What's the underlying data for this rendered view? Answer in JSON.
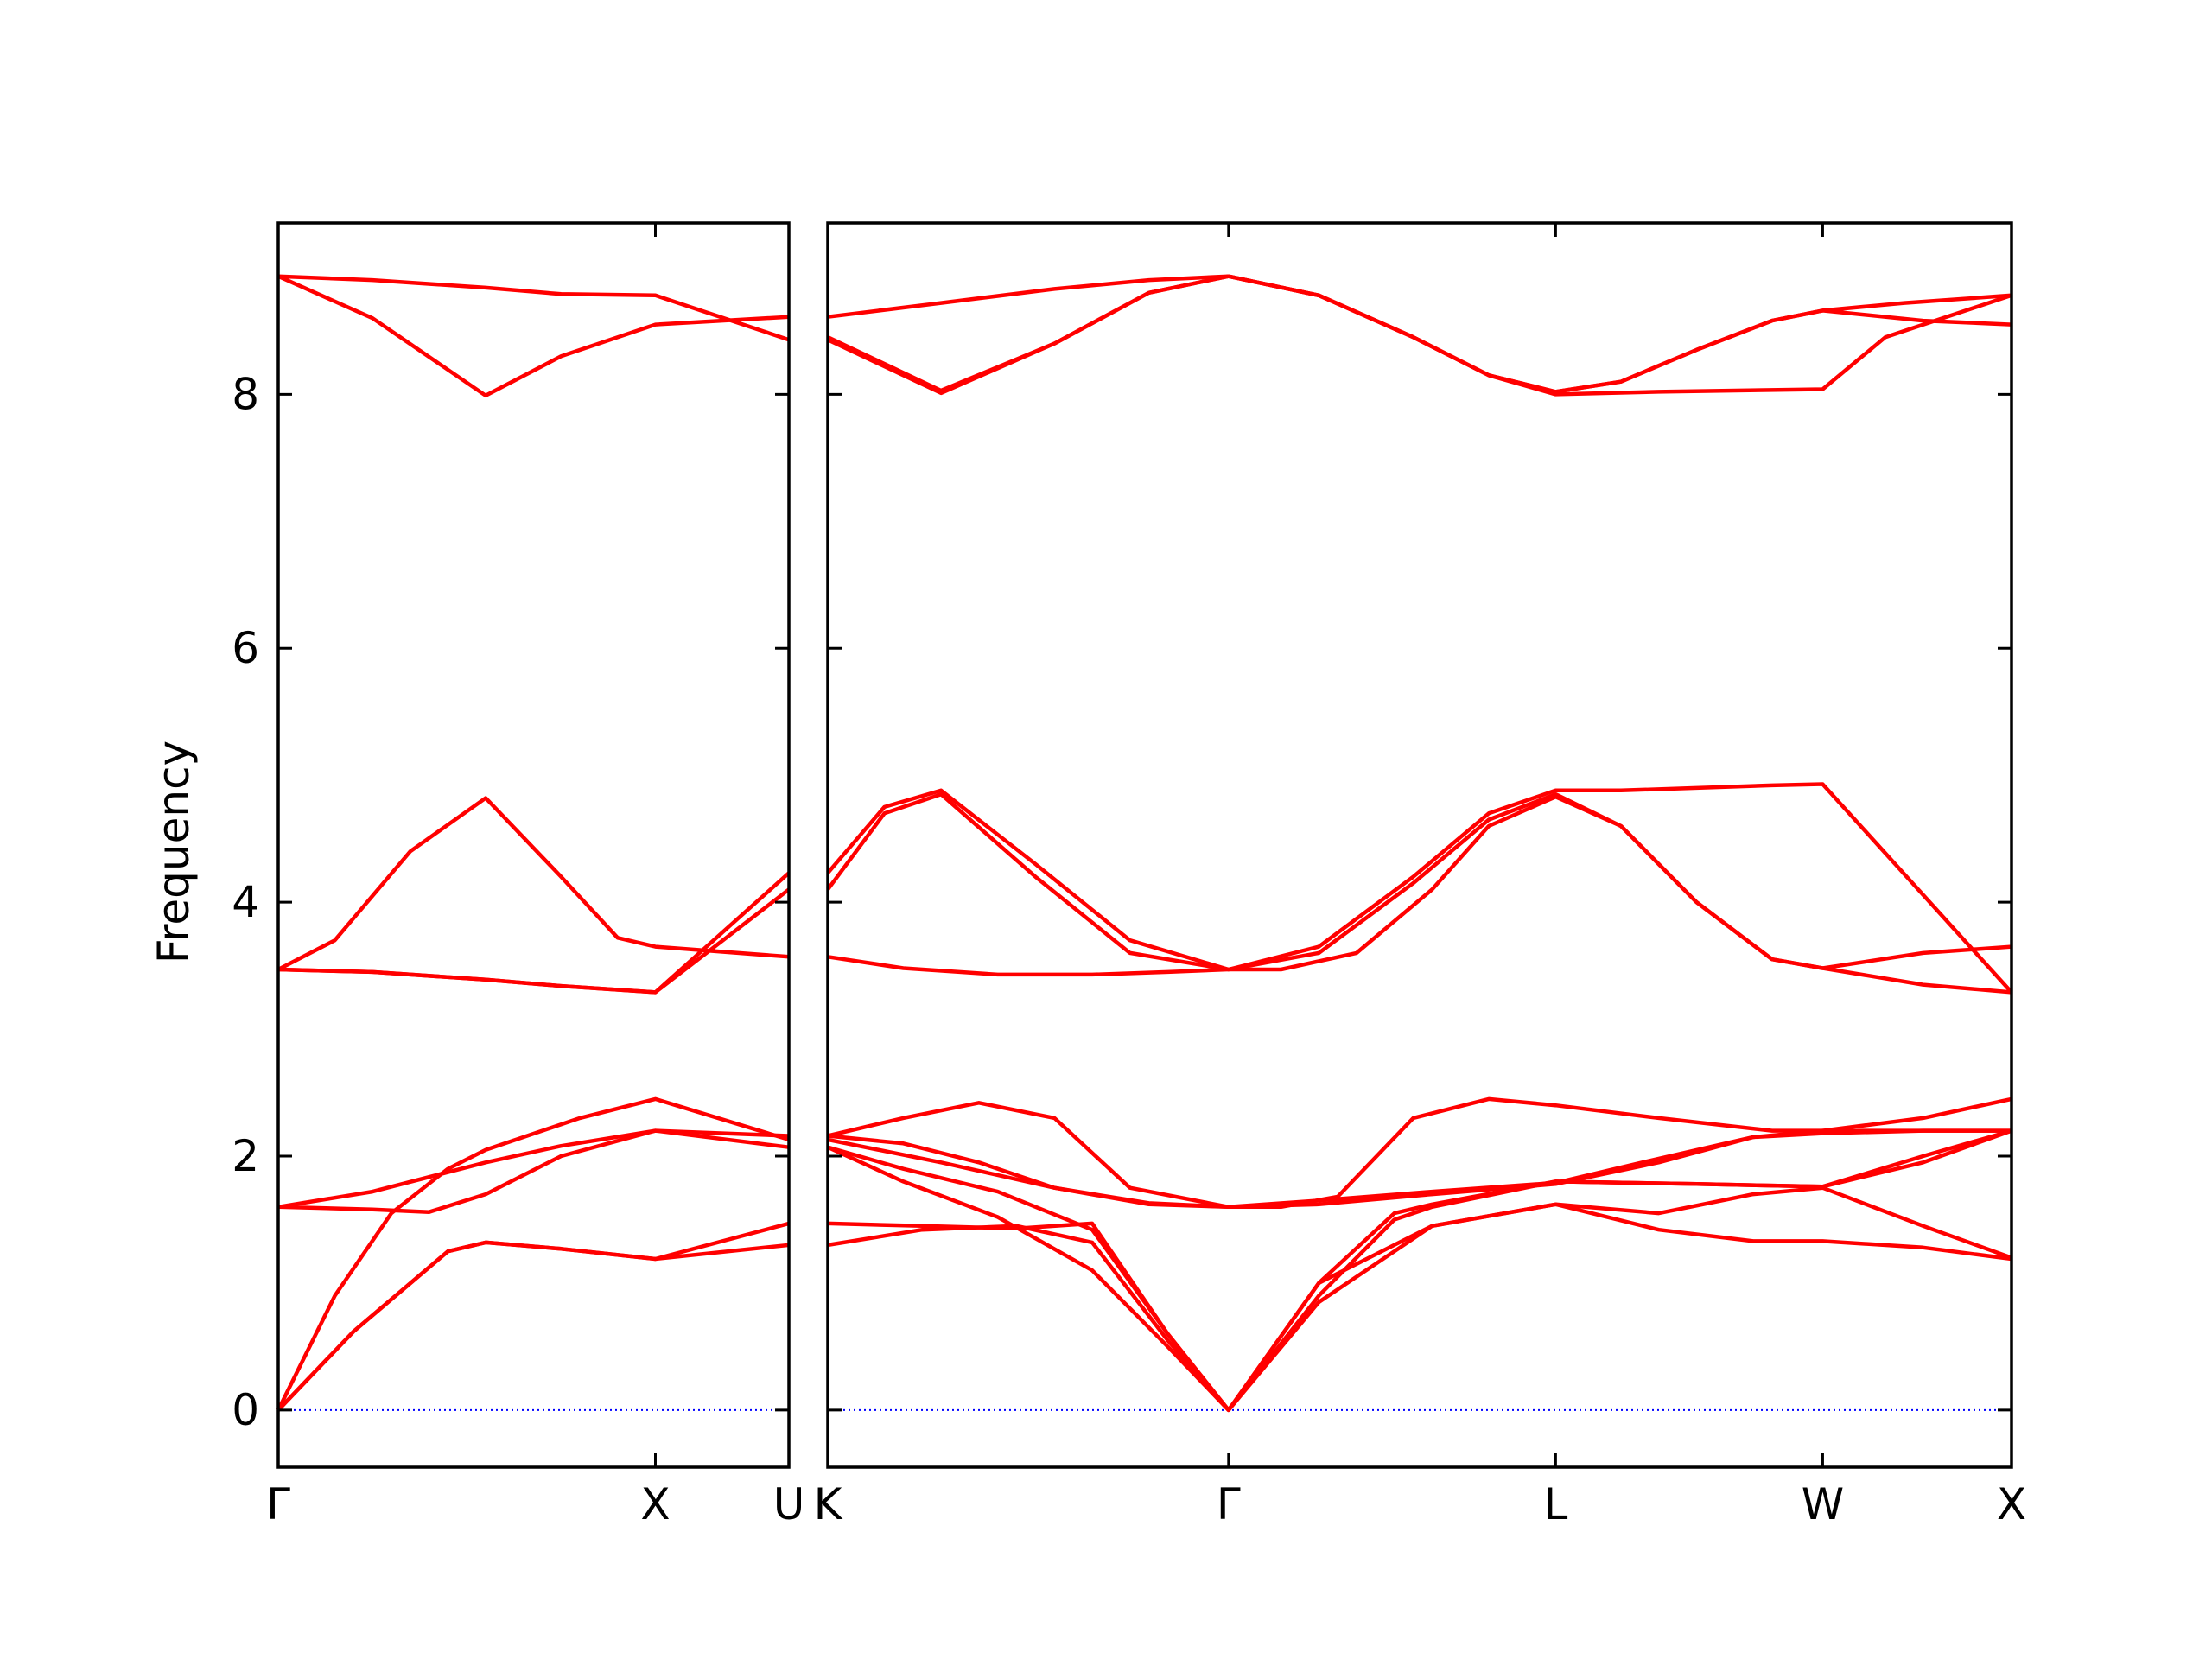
{
  "chart_data": {
    "type": "line",
    "ylabel": "Frequency",
    "ylim": [
      -0.45,
      9.35
    ],
    "yticks": [
      "0",
      "2",
      "4",
      "6",
      "8"
    ],
    "line_color": "#ff0000",
    "zero_line_color": "#0000ff",
    "panels": [
      {
        "xticks": [
          {
            "label": "Γ",
            "x": 0
          },
          {
            "label": "X",
            "x": 1
          },
          {
            "label": "U",
            "x": 1.354
          }
        ],
        "xlim": [
          0,
          1.354
        ],
        "series": [
          {
            "x": [
              0,
              0.25,
              0.55,
              0.75,
              1,
              1.354
            ],
            "y": [
              8.93,
              8.9,
              8.84,
              8.79,
              8.78,
              8.43
            ]
          },
          {
            "x": [
              0,
              0.25,
              0.55,
              0.75,
              1,
              1.354
            ],
            "y": [
              8.93,
              8.6,
              7.99,
              8.3,
              8.55,
              8.61
            ]
          },
          {
            "x": [
              0,
              0.15,
              0.35,
              0.55,
              0.75,
              0.9,
              1,
              1.354
            ],
            "y": [
              3.47,
              3.7,
              4.4,
              4.82,
              4.2,
              3.72,
              3.65,
              3.57
            ]
          },
          {
            "x": [
              0,
              0.25,
              0.55,
              0.75,
              1,
              1.354
            ],
            "y": [
              3.47,
              3.45,
              3.39,
              3.34,
              3.29,
              4.23
            ]
          },
          {
            "x": [
              0,
              0.25,
              0.55,
              0.75,
              1,
              1.354
            ],
            "y": [
              3.47,
              3.45,
              3.39,
              3.34,
              3.29,
              4.1
            ]
          },
          {
            "x": [
              0,
              0.15,
              0.3,
              0.45,
              0.55,
              0.8,
              1,
              1.354
            ],
            "y": [
              0,
              0.9,
              1.55,
              1.9,
              2.05,
              2.3,
              2.45,
              2.13
            ]
          },
          {
            "x": [
              0,
              0.25,
              0.55,
              0.75,
              1,
              1.354
            ],
            "y": [
              1.6,
              1.72,
              1.95,
              2.08,
              2.2,
              2.16
            ]
          },
          {
            "x": [
              0,
              0.25,
              0.4,
              0.55,
              0.75,
              1,
              1.354
            ],
            "y": [
              1.6,
              1.58,
              1.56,
              1.7,
              2.0,
              2.2,
              2.07
            ]
          },
          {
            "x": [
              0,
              0.2,
              0.45,
              0.55,
              0.75,
              1,
              1.354
            ],
            "y": [
              0,
              0.62,
              1.25,
              1.32,
              1.27,
              1.19,
              1.47
            ]
          },
          {
            "x": [
              0,
              0.2,
              0.45,
              0.55,
              0.75,
              1,
              1.354
            ],
            "y": [
              0,
              0.62,
              1.25,
              1.32,
              1.27,
              1.19,
              1.3
            ]
          }
        ]
      },
      {
        "xticks": [
          {
            "label": "K",
            "x": 0
          },
          {
            "label": "Γ",
            "x": 1.061
          },
          {
            "label": "L",
            "x": 1.927
          },
          {
            "label": "W",
            "x": 2.634
          },
          {
            "label": "X",
            "x": 3.134
          }
        ],
        "xlim": [
          0,
          3.134
        ],
        "series": [
          {
            "x": [
              0,
              0.3,
              0.6,
              0.85,
              1.061,
              1.3,
              1.55,
              1.75,
              1.927,
              2.1,
              2.3,
              2.5,
              2.634,
              2.85,
              3.134
            ],
            "y": [
              8.61,
              8.72,
              8.83,
              8.9,
              8.93,
              8.78,
              8.45,
              8.15,
              8.02,
              8.1,
              8.35,
              8.58,
              8.66,
              8.72,
              8.78
            ]
          },
          {
            "x": [
              0,
              0.3,
              0.6,
              0.85,
              1.061,
              1.3,
              1.55,
              1.75,
              1.927,
              2.2,
              2.634,
              2.8,
              3.134
            ],
            "y": [
              8.43,
              8.01,
              8.4,
              8.8,
              8.93,
              8.78,
              8.45,
              8.15,
              8.0,
              8.02,
              8.04,
              8.45,
              8.78
            ]
          },
          {
            "x": [
              0,
              0.3,
              0.6,
              0.85,
              1.061,
              1.3,
              1.55,
              1.75,
              1.927,
              2.1,
              2.3,
              2.5,
              2.634,
              2.9,
              3.134
            ],
            "y": [
              8.45,
              8.03,
              8.4,
              8.8,
              8.93,
              8.78,
              8.45,
              8.15,
              8.02,
              8.1,
              8.35,
              8.58,
              8.66,
              8.58,
              8.55
            ]
          },
          {
            "x": [
              0,
              0.15,
              0.3,
              0.55,
              0.8,
              1.061,
              1.3,
              1.55,
              1.75,
              1.927,
              2.1,
              2.3,
              2.5,
              2.634,
              3.134
            ],
            "y": [
              4.23,
              4.75,
              4.88,
              4.3,
              3.7,
              3.47,
              3.65,
              4.2,
              4.7,
              4.88,
              4.88,
              4.9,
              4.92,
              4.93,
              3.29
            ]
          },
          {
            "x": [
              0,
              0.15,
              0.3,
              0.55,
              0.8,
              1.061,
              1.3,
              1.55,
              1.75,
              1.927,
              2.1,
              2.3,
              2.5,
              2.634,
              2.9,
              3.134
            ],
            "y": [
              4.1,
              4.7,
              4.85,
              4.2,
              3.6,
              3.47,
              3.6,
              4.15,
              4.65,
              4.85,
              4.6,
              4.0,
              3.55,
              3.48,
              3.6,
              3.65
            ]
          },
          {
            "x": [
              0,
              0.2,
              0.45,
              0.7,
              0.9,
              1.061,
              1.2,
              1.4,
              1.6,
              1.75,
              1.927,
              2.1,
              2.3,
              2.5,
              2.634,
              2.9,
              3.134
            ],
            "y": [
              3.57,
              3.48,
              3.43,
              3.43,
              3.45,
              3.47,
              3.47,
              3.6,
              4.1,
              4.6,
              4.83,
              4.6,
              4.0,
              3.55,
              3.48,
              3.35,
              3.29
            ]
          },
          {
            "x": [
              0,
              0.2,
              0.4,
              0.6,
              0.8,
              1.061,
              1.2,
              1.35,
              1.55,
              1.75,
              1.927,
              2.2,
              2.5,
              2.634,
              2.9,
              3.134
            ],
            "y": [
              2.16,
              2.3,
              2.42,
              2.3,
              1.75,
              1.6,
              1.6,
              1.68,
              2.3,
              2.45,
              2.4,
              2.3,
              2.2,
              2.2,
              2.3,
              2.45
            ]
          },
          {
            "x": [
              0,
              0.3,
              0.6,
              0.85,
              1.061,
              1.3,
              1.6,
              1.927,
              2.2,
              2.45,
              2.634,
              2.9,
              3.134
            ],
            "y": [
              2.13,
              1.95,
              1.75,
              1.63,
              1.6,
              1.65,
              1.72,
              1.79,
              1.98,
              2.15,
              2.18,
              2.2,
              2.2
            ]
          },
          {
            "x": [
              0,
              0.2,
              0.4,
              0.6,
              0.85,
              1.061,
              1.3,
              1.6,
              1.927,
              2.2,
              2.45,
              2.634,
              2.9,
              3.134
            ],
            "y": [
              2.16,
              2.1,
              1.95,
              1.75,
              1.62,
              1.6,
              1.62,
              1.7,
              1.78,
              1.95,
              2.15,
              2.2,
              2.2,
              2.2
            ]
          },
          {
            "x": [
              0,
              0.2,
              0.45,
              0.7,
              0.9,
              1.061,
              1.3,
              1.6,
              1.927,
              2.2,
              2.45,
              2.634,
              2.9,
              3.134
            ],
            "y": [
              2.07,
              1.9,
              1.72,
              1.42,
              0.6,
              0,
              1.0,
              1.45,
              1.62,
              1.55,
              1.7,
              1.75,
              1.45,
              1.2
            ]
          },
          {
            "x": [
              0,
              0.2,
              0.45,
              0.7,
              0.9,
              1.061,
              1.3,
              1.6,
              1.927,
              2.2,
              2.45,
              2.634,
              2.9,
              3.134
            ],
            "y": [
              2.07,
              1.8,
              1.52,
              1.1,
              0.5,
              0,
              0.85,
              1.45,
              1.62,
              1.42,
              1.33,
              1.33,
              1.28,
              1.19
            ]
          },
          {
            "x": [
              0,
              0.25,
              0.5,
              0.7,
              0.9,
              1.061,
              1.3,
              1.5,
              1.6,
              1.927,
              2.3,
              2.634,
              2.9,
              3.134
            ],
            "y": [
              1.47,
              1.45,
              1.43,
              1.47,
              0.6,
              0,
              1.0,
              1.55,
              1.62,
              1.8,
              1.78,
              1.76,
              2.0,
              2.2
            ]
          },
          {
            "x": [
              0,
              0.25,
              0.5,
              0.7,
              0.9,
              1.061,
              1.3,
              1.5,
              1.6,
              1.927,
              2.3,
              2.634,
              2.9,
              3.134
            ],
            "y": [
              1.3,
              1.42,
              1.45,
              1.32,
              0.55,
              0,
              0.9,
              1.5,
              1.6,
              1.8,
              1.78,
              1.76,
              1.95,
              2.2
            ]
          }
        ]
      }
    ]
  }
}
